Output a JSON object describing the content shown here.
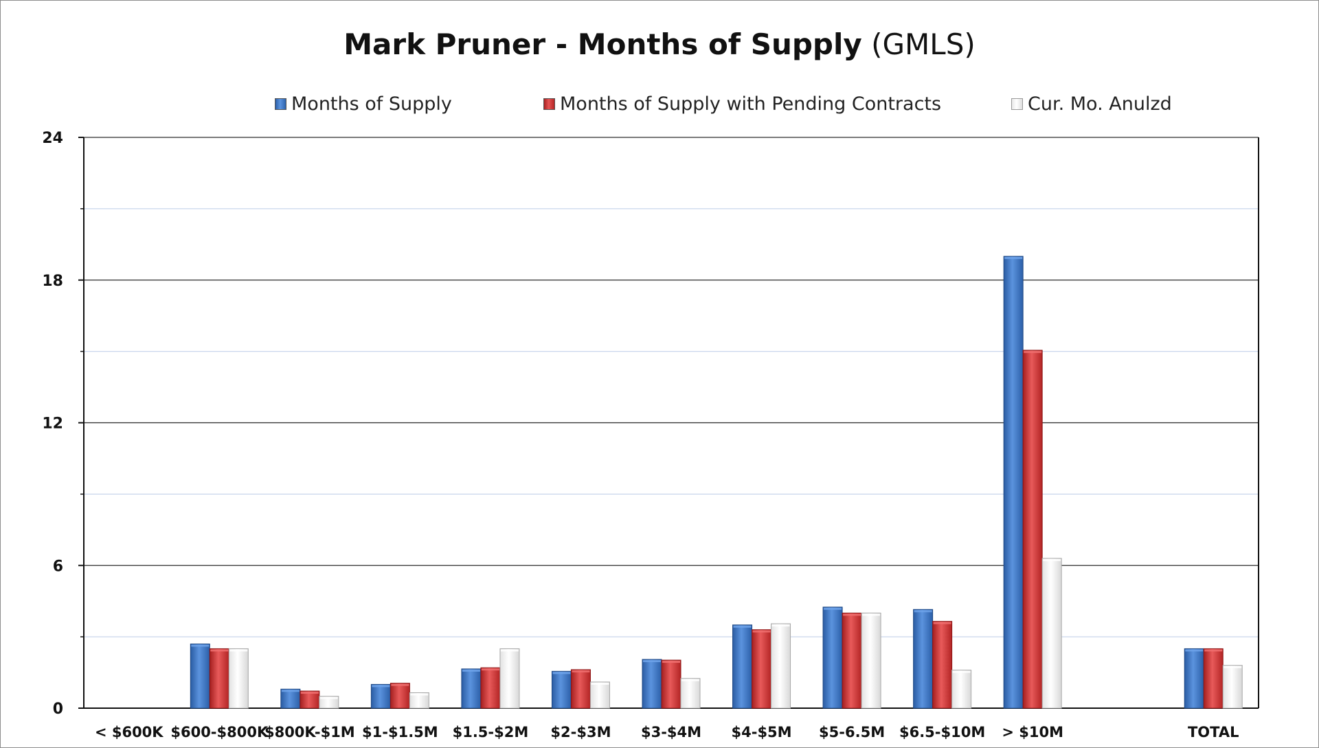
{
  "chart_data": {
    "type": "bar",
    "title": "Mark Pruner - Months of Supply",
    "subtitle": "(GMLS)",
    "categories": [
      "< $600K",
      "$600-$800K",
      "$800K-$1M",
      "$1-$1.5M",
      "$1.5-$2M",
      "$2-$3M",
      "$3-$4M",
      "$4-$5M",
      "$5-6.5M",
      "$6.5-$10M",
      "> $10M",
      "",
      "TOTAL"
    ],
    "series": [
      {
        "name": "Months of Supply",
        "color": "#3a73c4",
        "values": [
          0,
          2.7,
          0.8,
          1.0,
          1.65,
          1.55,
          2.05,
          3.5,
          4.25,
          4.15,
          19.0,
          null,
          2.5
        ]
      },
      {
        "name": "Months of Supply with Pending Contracts",
        "color": "#d83a3a",
        "values": [
          0,
          2.5,
          0.72,
          1.05,
          1.7,
          1.62,
          2.02,
          3.3,
          4.0,
          3.65,
          15.05,
          null,
          2.5
        ]
      },
      {
        "name": "Cur. Mo. Anulzd",
        "color": "#f4f4f4",
        "values": [
          0,
          2.5,
          0.5,
          0.65,
          2.5,
          1.1,
          1.25,
          3.55,
          4.0,
          1.6,
          6.3,
          null,
          1.8
        ]
      }
    ],
    "ylim": [
      0,
      24
    ],
    "yticks": [
      0,
      6,
      12,
      18,
      24
    ],
    "minor_gridlines": [
      3,
      9,
      15,
      21
    ],
    "grid": true,
    "legend_position": "top"
  }
}
